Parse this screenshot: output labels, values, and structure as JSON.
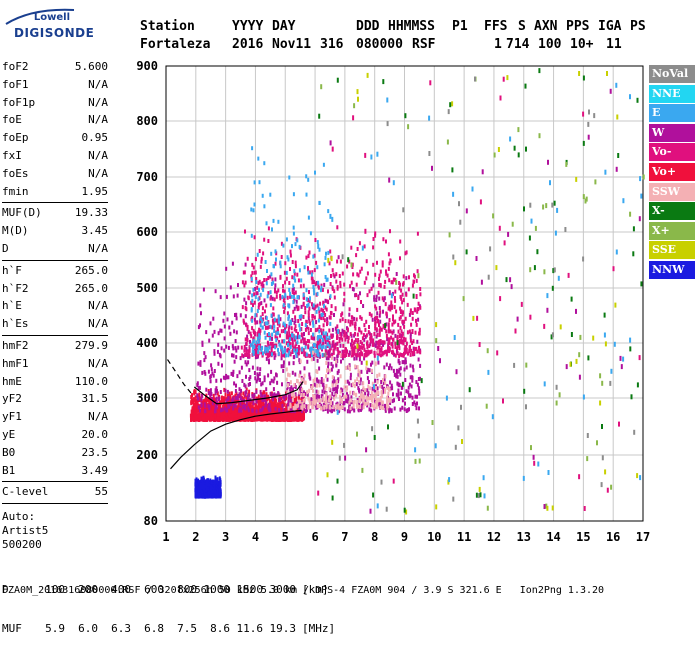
{
  "logo": {
    "top": "Lowell",
    "main": "DIGISONDE"
  },
  "header": {
    "labels": [
      "Station",
      "YYYY",
      "DAY",
      "DDD",
      "HHMMSS",
      "P1",
      "FFS",
      "S",
      "AXN",
      "PPS",
      "IGA",
      "PS"
    ],
    "values": [
      "Fortaleza",
      "2016",
      "Nov11",
      "316",
      "080000",
      "RSF",
      "",
      "1",
      "714",
      "100",
      "10+",
      "11"
    ]
  },
  "params": [
    [
      {
        "label": "foF2",
        "value": "5.600"
      },
      {
        "label": "foF1",
        "value": "N/A"
      },
      {
        "label": "foF1p",
        "value": "N/A"
      },
      {
        "label": "foE",
        "value": "N/A"
      },
      {
        "label": "foEp",
        "value": "0.95"
      },
      {
        "label": "fxI",
        "value": "N/A"
      },
      {
        "label": "foEs",
        "value": "N/A"
      },
      {
        "label": "fmin",
        "value": "1.95"
      }
    ],
    [
      {
        "label": "MUF(D)",
        "value": "19.33"
      },
      {
        "label": "M(D)",
        "value": "3.45"
      },
      {
        "label": "D",
        "value": "N/A"
      }
    ],
    [
      {
        "label": "h`F",
        "value": "265.0"
      },
      {
        "label": "h`F2",
        "value": "265.0"
      },
      {
        "label": "h`E",
        "value": "N/A"
      },
      {
        "label": "h`Es",
        "value": "N/A"
      }
    ],
    [
      {
        "label": "hmF2",
        "value": "279.9"
      },
      {
        "label": "hmF1",
        "value": "N/A"
      },
      {
        "label": "hmE",
        "value": "110.0"
      },
      {
        "label": "yF2",
        "value": "31.5"
      },
      {
        "label": "yF1",
        "value": "N/A"
      },
      {
        "label": "yE",
        "value": "20.0"
      },
      {
        "label": "B0",
        "value": "23.5"
      },
      {
        "label": "B1",
        "value": "3.49"
      }
    ],
    [
      {
        "label": "C-level",
        "value": "55"
      }
    ]
  ],
  "autoscaling": [
    "Auto:",
    "Artist5",
    "500200"
  ],
  "legend": [
    {
      "label": "NoVal",
      "color": "#8c8c8c"
    },
    {
      "label": "NNE",
      "color": "#22d6f2"
    },
    {
      "label": "E",
      "color": "#3aa8f0"
    },
    {
      "label": "W",
      "color": "#b0109c"
    },
    {
      "label": "Vo-",
      "color": "#e0107e"
    },
    {
      "label": "Vo+",
      "color": "#f0103c"
    },
    {
      "label": "SSW",
      "color": "#f4b0b4"
    },
    {
      "label": "X-",
      "color": "#0a7a12"
    },
    {
      "label": "X+",
      "color": "#8ab84a"
    },
    {
      "label": "SSE",
      "color": "#c8d000"
    },
    {
      "label": "NNW",
      "color": "#1a1ae0"
    }
  ],
  "footer": {
    "distance_label": "D",
    "distances": [
      "100",
      "200",
      "400",
      "600",
      "800",
      "1000",
      "1500",
      "3000"
    ],
    "distance_unit": "[km]",
    "muf_label": "MUF",
    "mufs": [
      "5.9",
      "6.0",
      "6.3",
      "6.8",
      "7.5",
      "8.6",
      "11.6",
      "19.3"
    ],
    "muf_unit": "[MHz]",
    "file_line": "FZA0M_2016316080000.RSF / 320fx256h 50 kHz 5.0 km / DPS-4 FZA0M 904 / 3.9 S 321.6 E   Ion2Png 1.3.20"
  },
  "chart_data": {
    "type": "scatter",
    "title": "",
    "xlabel": "",
    "ylabel": "",
    "xlim": [
      1,
      17
    ],
    "ylim": [
      80,
      900
    ],
    "xticks": [
      "1",
      "2",
      "3",
      "4",
      "5",
      "6",
      "7",
      "8",
      "9",
      "10",
      "11",
      "12",
      "13",
      "14",
      "15",
      "16",
      "17"
    ],
    "yticks": [
      "80",
      "200",
      "300",
      "400",
      "500",
      "600",
      "700",
      "800",
      "900"
    ],
    "y_tick_values": [
      80,
      200,
      300,
      400,
      500,
      600,
      700,
      800,
      900
    ],
    "grid": true,
    "legend_placement": "right",
    "scatter_regions": [
      {
        "x_range": [
          1.8,
          5.6
        ],
        "y_range": [
          265,
          320
        ],
        "color": "Vo+",
        "density": "high"
      },
      {
        "x_range": [
          2.0,
          9.5
        ],
        "y_range": [
          280,
          560
        ],
        "color": "W",
        "density": "medium"
      },
      {
        "x_range": [
          3.5,
          9.5
        ],
        "y_range": [
          380,
          620
        ],
        "color": "Vo-",
        "density": "medium"
      },
      {
        "x_range": [
          3.8,
          6.5
        ],
        "y_range": [
          380,
          800
        ],
        "color": "E",
        "density": "low"
      },
      {
        "x_range": [
          5.0,
          8.5
        ],
        "y_range": [
          285,
          400
        ],
        "color": "SSW",
        "density": "low"
      },
      {
        "x_range": [
          1.95,
          2.8
        ],
        "y_range": [
          128,
          165
        ],
        "color": "NNW",
        "density": "medium"
      }
    ],
    "virtual_height_curve": {
      "name": "",
      "x": [
        1.15,
        1.5,
        1.95,
        2.5,
        3.0,
        3.5,
        4.0,
        4.5,
        5.0,
        5.3,
        5.55
      ],
      "y": [
        175,
        196,
        218,
        242,
        254,
        262,
        268,
        272,
        275,
        277,
        278
      ]
    },
    "trace_curve": {
      "x": [
        1.95,
        2.3,
        2.7,
        3.2,
        3.8,
        4.4,
        5.0,
        5.4,
        5.6
      ],
      "y": [
        320,
        305,
        290,
        292,
        296,
        300,
        306,
        315,
        330
      ]
    },
    "dashed_extrapolation": {
      "x": [
        1.05,
        1.3,
        1.6,
        1.9
      ],
      "y": [
        370,
        350,
        325,
        305
      ]
    }
  }
}
